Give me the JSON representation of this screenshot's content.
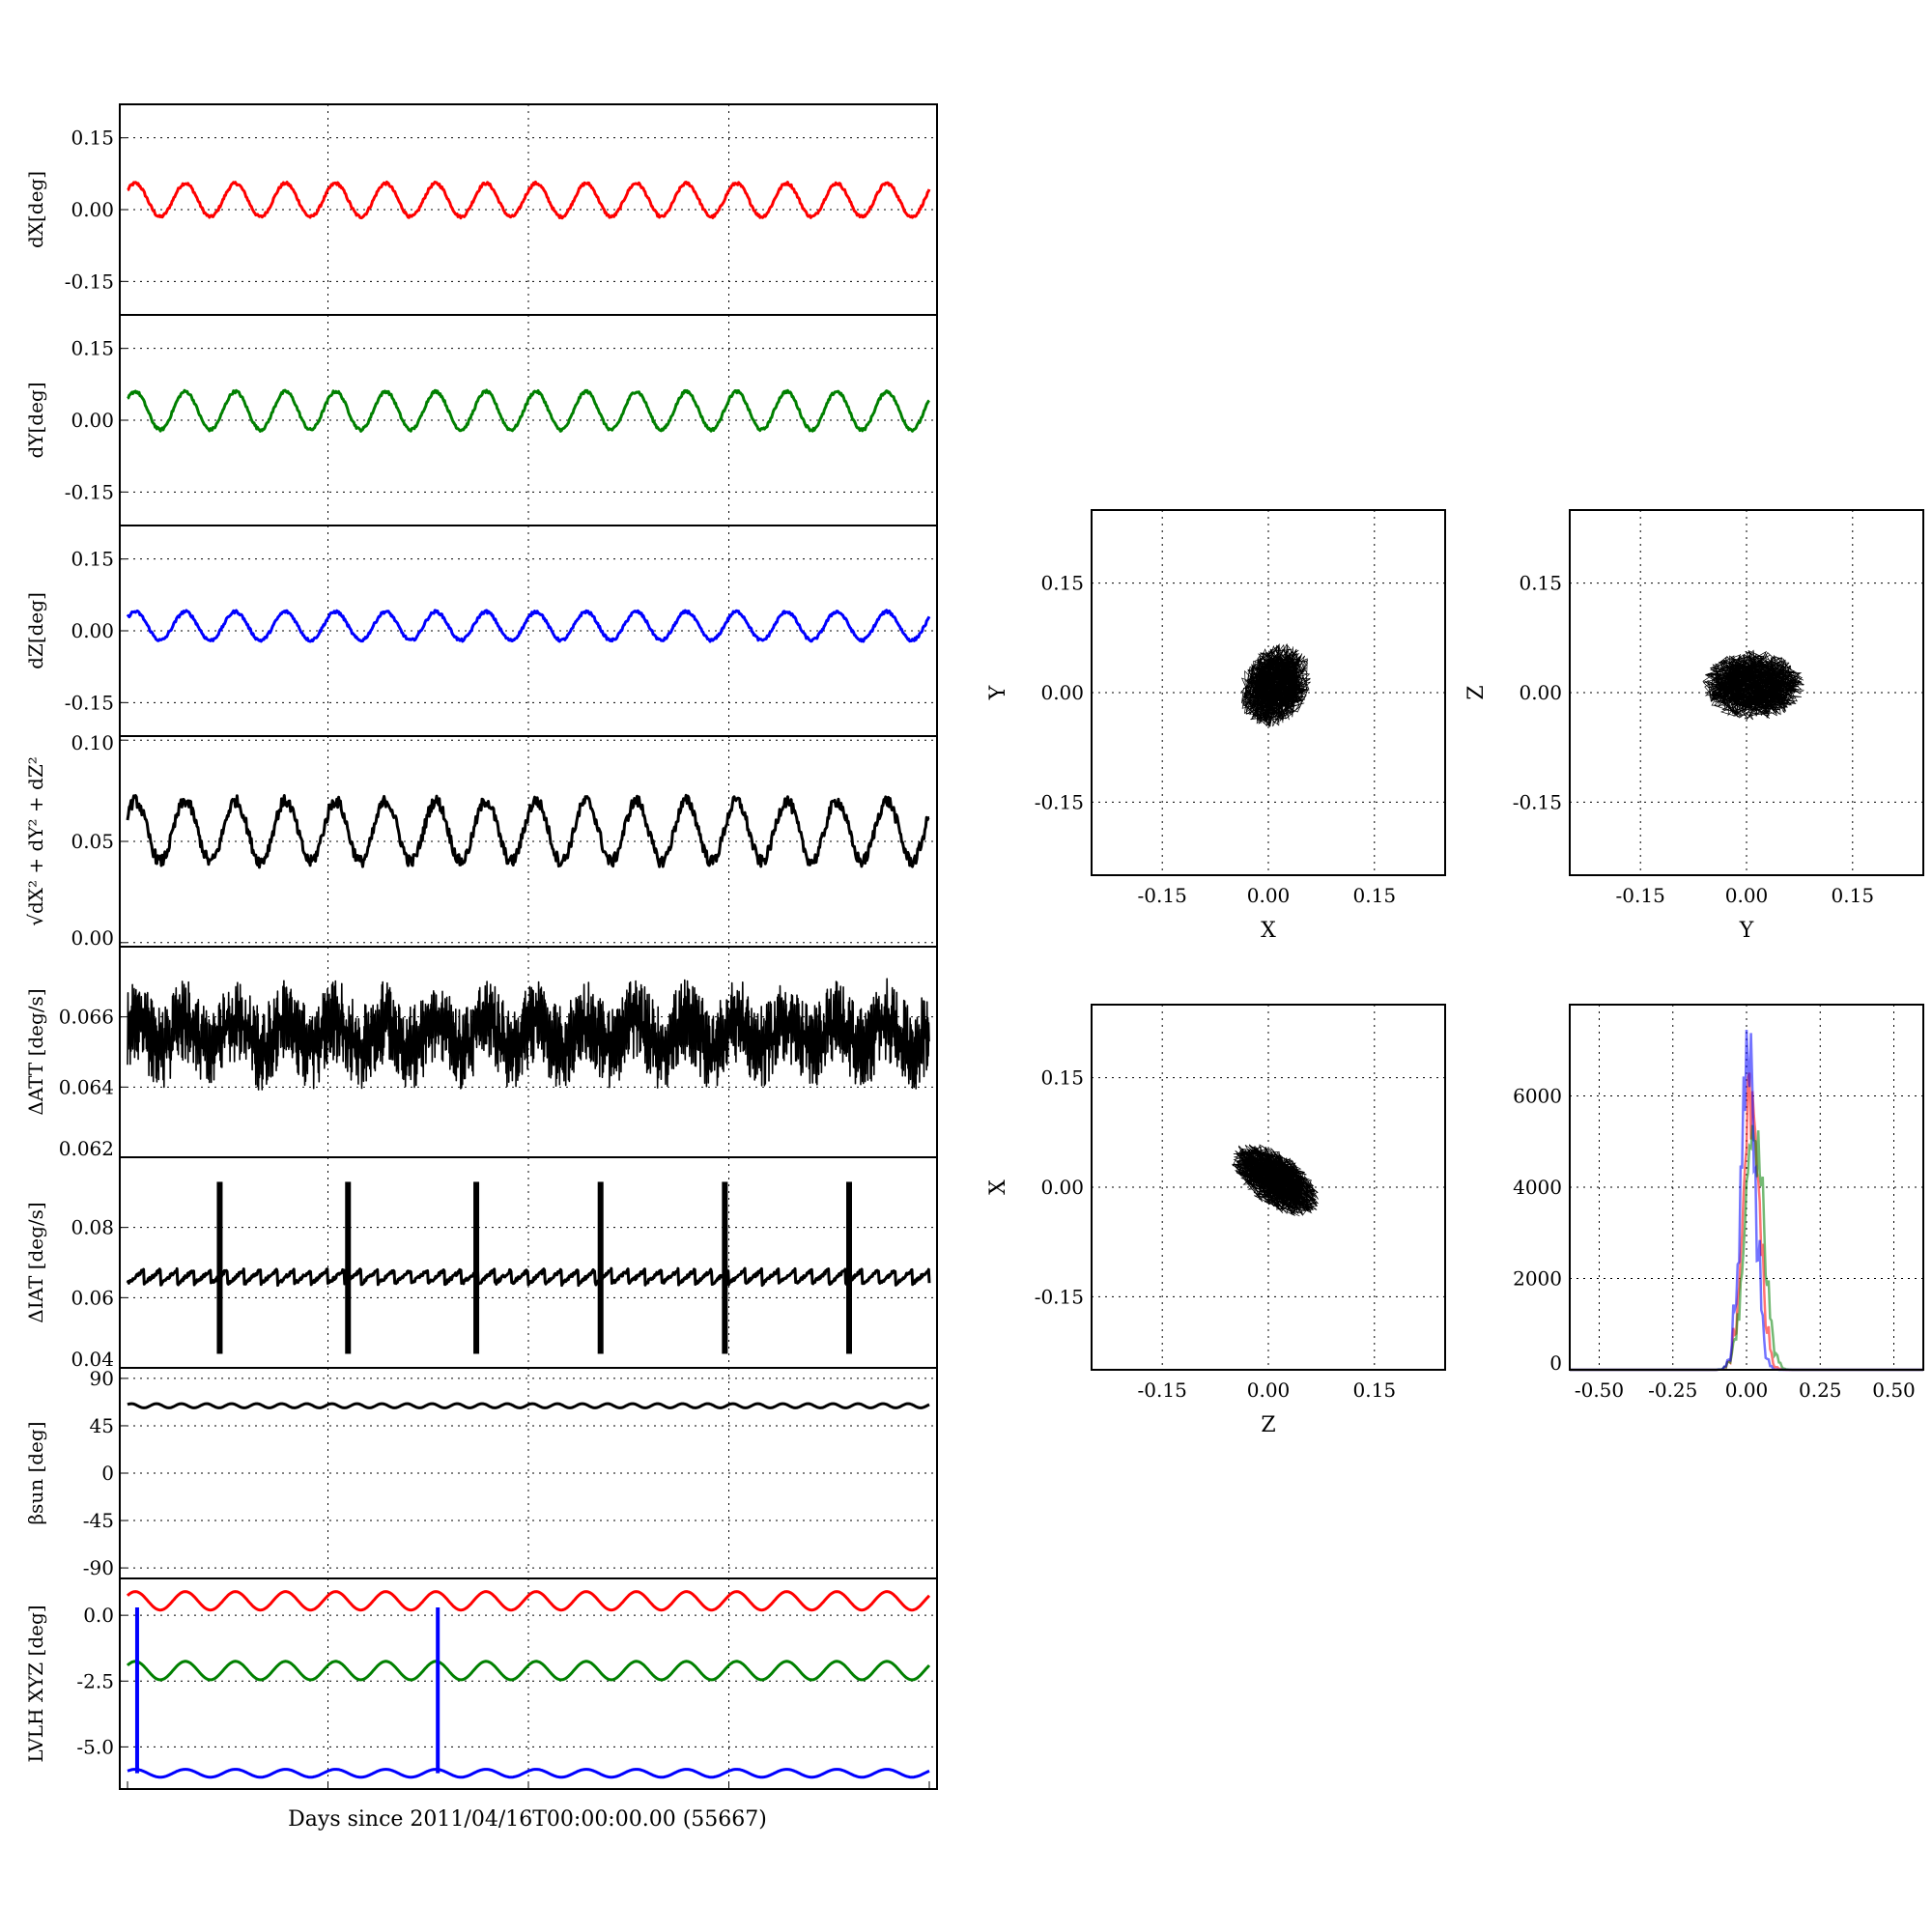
{
  "figure": {
    "xlabel": "Days since 2011/04/16T00:00:00.00 (55667)"
  },
  "chart_data": [
    {
      "id": "dx",
      "type": "line",
      "ylabel": "dX[deg]",
      "yticks": [
        "0.15",
        "0.00",
        "-0.15"
      ],
      "ylim": [
        -0.22,
        0.22
      ],
      "grid": true,
      "series": [
        {
          "color": "#ff0000",
          "kind": "sinusoid",
          "mean": 0.02,
          "amplitude": 0.035,
          "cycles": 16,
          "noise": 0.006
        }
      ]
    },
    {
      "id": "dy",
      "type": "line",
      "ylabel": "dY[deg]",
      "yticks": [
        "0.15",
        "0.00",
        "-0.15"
      ],
      "ylim": [
        -0.22,
        0.22
      ],
      "grid": true,
      "series": [
        {
          "color": "#008000",
          "kind": "sinusoid",
          "mean": 0.02,
          "amplitude": 0.04,
          "cycles": 16,
          "noise": 0.006
        }
      ]
    },
    {
      "id": "dz",
      "type": "line",
      "ylabel": "dZ[deg]",
      "yticks": [
        "0.15",
        "0.00",
        "-0.15"
      ],
      "ylim": [
        -0.22,
        0.22
      ],
      "grid": true,
      "series": [
        {
          "color": "#0000ff",
          "kind": "sinusoid",
          "mean": 0.01,
          "amplitude": 0.03,
          "cycles": 16,
          "noise": 0.006
        }
      ]
    },
    {
      "id": "norm",
      "type": "line",
      "ylabel": "√dX² + dY² + dZ²",
      "yticks": [
        "0.10",
        "0.05",
        "0.00"
      ],
      "ylim": [
        -0.002,
        0.102
      ],
      "grid": true,
      "series": [
        {
          "color": "#000000",
          "kind": "sinusoid",
          "mean": 0.055,
          "amplitude": 0.015,
          "cycles": 16,
          "noise": 0.006
        }
      ]
    },
    {
      "id": "datt",
      "type": "line",
      "ylabel": "ΔATT [deg/s]",
      "yticks": [
        "0.066",
        "0.064",
        "0.062"
      ],
      "ylim": [
        0.062,
        0.068
      ],
      "grid": true,
      "series": [
        {
          "color": "#000000",
          "kind": "dense",
          "mean": 0.0655,
          "amplitude": 0.0004,
          "cycles": 16,
          "noise": 0.0012
        }
      ]
    },
    {
      "id": "diat",
      "type": "line",
      "ylabel": "ΔIAT [deg/s]",
      "yticks": [
        "0.08",
        "0.06",
        "0.04"
      ],
      "ylim": [
        0.04,
        0.1
      ],
      "grid": true,
      "series": [
        {
          "color": "#000000",
          "kind": "sawtooth",
          "mean": 0.066,
          "amplitude": 0.002,
          "cycles": 48,
          "spikes_at": [
            0.115,
            0.275,
            0.435,
            0.59,
            0.745,
            0.9
          ],
          "spike_range": [
            0.044,
            0.093
          ]
        }
      ]
    },
    {
      "id": "beta",
      "type": "line",
      "ylabel": "βsun [deg]",
      "yticks": [
        "90",
        "45",
        "0",
        "-45",
        "-90"
      ],
      "ylim": [
        -100,
        100
      ],
      "grid": true,
      "series": [
        {
          "color": "#000000",
          "kind": "sinusoid",
          "mean": 64,
          "amplitude": 2,
          "cycles": 32,
          "noise": 0
        }
      ]
    },
    {
      "id": "lvlh",
      "type": "line",
      "ylabel": "LVLH XYZ [deg]",
      "yticks": [
        "0.0",
        "-2.5",
        "-5.0"
      ],
      "ylim": [
        -6.6,
        1.4
      ],
      "grid": true,
      "series": [
        {
          "color": "#ff0000",
          "kind": "sinusoid",
          "mean": 0.55,
          "amplitude": 0.35,
          "cycles": 16,
          "noise": 0
        },
        {
          "color": "#008000",
          "kind": "sinusoid",
          "mean": -2.1,
          "amplitude": 0.35,
          "cycles": 16,
          "noise": 0
        },
        {
          "color": "#0000ff",
          "kind": "sinusoid",
          "mean": -6.0,
          "amplitude": 0.15,
          "cycles": 16,
          "noise": 0,
          "drops_at": [
            0.012,
            0.387
          ],
          "drop_top": 0.3
        }
      ]
    },
    {
      "id": "xy",
      "type": "scatter",
      "xlabel": "X",
      "ylabel": "Y",
      "xticks": [
        "-0.15",
        "0.00",
        "0.15"
      ],
      "yticks": [
        "0.15",
        "0.00",
        "-0.15"
      ],
      "xlim": [
        -0.25,
        0.25
      ],
      "ylim": [
        -0.25,
        0.25
      ],
      "grid": true,
      "cloud": {
        "center": [
          0.01,
          0.01
        ],
        "radii": [
          0.04,
          0.05
        ],
        "tilt_deg": -30
      }
    },
    {
      "id": "yz",
      "type": "scatter",
      "xlabel": "Y",
      "ylabel": "Z",
      "xticks": [
        "-0.15",
        "0.00",
        "0.15"
      ],
      "yticks": [
        "0.15",
        "0.00",
        "-0.15"
      ],
      "xlim": [
        -0.25,
        0.25
      ],
      "ylim": [
        -0.25,
        0.25
      ],
      "grid": true,
      "cloud": {
        "center": [
          0.01,
          0.01
        ],
        "radii": [
          0.06,
          0.04
        ],
        "tilt_deg": 0
      }
    },
    {
      "id": "zx",
      "type": "scatter",
      "xlabel": "Z",
      "ylabel": "X",
      "xticks": [
        "-0.15",
        "0.00",
        "0.15"
      ],
      "yticks": [
        "0.15",
        "0.00",
        "-0.15"
      ],
      "xlim": [
        -0.25,
        0.25
      ],
      "ylim": [
        -0.25,
        0.25
      ],
      "grid": true,
      "cloud": {
        "center": [
          0.01,
          0.01
        ],
        "radii": [
          0.06,
          0.03
        ],
        "tilt_deg": -35
      }
    },
    {
      "id": "hist",
      "type": "line",
      "xticks": [
        "-0.50",
        "-0.25",
        "0.00",
        "0.25",
        "0.50"
      ],
      "yticks": [
        "6000",
        "4000",
        "2000",
        "0"
      ],
      "xlim": [
        -0.6,
        0.6
      ],
      "ylim": [
        0,
        8000
      ],
      "grid": true,
      "series": [
        {
          "color": "#ff0000",
          "center": 0.015,
          "width": 0.028,
          "peak": 6400
        },
        {
          "color": "#008000",
          "center": 0.025,
          "width": 0.032,
          "peak": 5800
        },
        {
          "color": "#0000ff",
          "center": 0.005,
          "width": 0.025,
          "peak": 7500
        }
      ]
    }
  ]
}
